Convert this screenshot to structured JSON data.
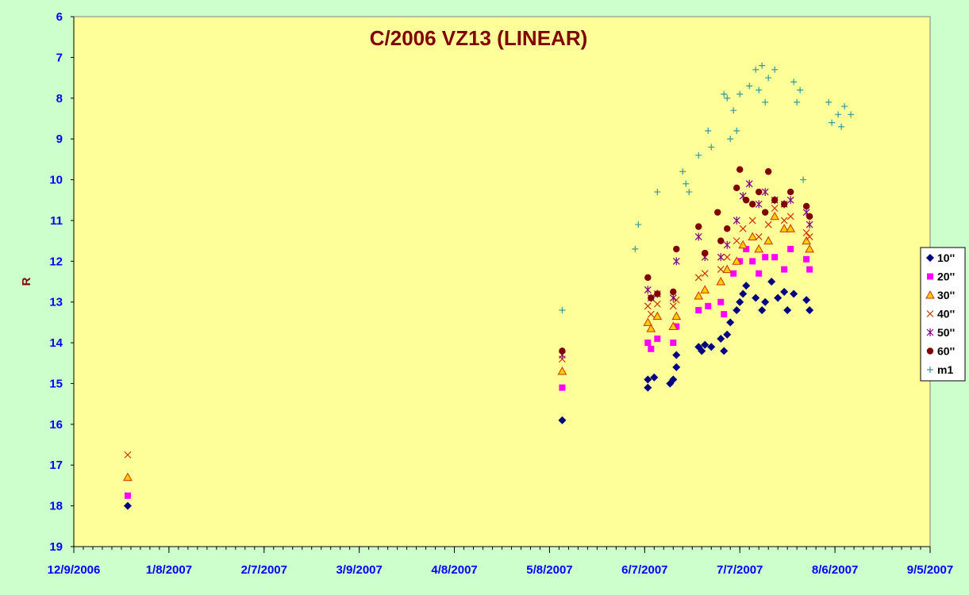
{
  "chart_data": {
    "type": "scatter",
    "title": "C/2006 VZ13 (LINEAR)",
    "ylabel": "R",
    "xlabel": "",
    "y_inverted": true,
    "ylim": [
      6,
      19
    ],
    "y_ticks": [
      6,
      7,
      8,
      9,
      10,
      11,
      12,
      13,
      14,
      15,
      16,
      17,
      18,
      19
    ],
    "xlim": [
      "2006-12-09",
      "2007-09-05"
    ],
    "x_tick_dates": [
      "2006-12-09",
      "2007-01-08",
      "2007-02-07",
      "2007-03-09",
      "2007-04-08",
      "2007-05-08",
      "2007-06-07",
      "2007-07-07",
      "2007-08-06",
      "2007-09-05"
    ],
    "x_tick_labels": [
      "12/9/2006",
      "1/8/2007",
      "2/7/2007",
      "3/9/2007",
      "4/8/2007",
      "5/8/2007",
      "6/7/2007",
      "7/7/2007",
      "8/6/2007",
      "9/5/2007"
    ],
    "grid": false,
    "legend_position": "right",
    "colors": {
      "plot_background": "#ffff99",
      "outer_background": "#ccffcc",
      "title": "#800000",
      "axis_labels": "#0000ff",
      "ylabel": "#800000"
    },
    "series": [
      {
        "name": "10''",
        "marker": "diamond",
        "color": "#000080",
        "points": [
          [
            "2006-12-26",
            18.0
          ],
          [
            "2007-05-12",
            15.9
          ],
          [
            "2007-06-08",
            15.1
          ],
          [
            "2007-06-08",
            14.9
          ],
          [
            "2007-06-10",
            14.85
          ],
          [
            "2007-06-15",
            15.0
          ],
          [
            "2007-06-16",
            14.9
          ],
          [
            "2007-06-17",
            14.6
          ],
          [
            "2007-06-17",
            14.3
          ],
          [
            "2007-06-24",
            14.1
          ],
          [
            "2007-06-25",
            14.2
          ],
          [
            "2007-06-26",
            14.05
          ],
          [
            "2007-06-28",
            14.1
          ],
          [
            "2007-07-01",
            13.9
          ],
          [
            "2007-07-02",
            14.2
          ],
          [
            "2007-07-03",
            13.8
          ],
          [
            "2007-07-04",
            13.5
          ],
          [
            "2007-07-06",
            13.2
          ],
          [
            "2007-07-07",
            13.0
          ],
          [
            "2007-07-08",
            12.8
          ],
          [
            "2007-07-09",
            12.6
          ],
          [
            "2007-07-12",
            12.9
          ],
          [
            "2007-07-14",
            13.2
          ],
          [
            "2007-07-15",
            13.0
          ],
          [
            "2007-07-17",
            12.5
          ],
          [
            "2007-07-19",
            12.9
          ],
          [
            "2007-07-21",
            12.75
          ],
          [
            "2007-07-22",
            13.2
          ],
          [
            "2007-07-24",
            12.8
          ],
          [
            "2007-07-28",
            12.95
          ],
          [
            "2007-07-29",
            13.2
          ]
        ]
      },
      {
        "name": "20''",
        "marker": "square",
        "color": "#ff00ff",
        "points": [
          [
            "2006-12-26",
            17.75
          ],
          [
            "2007-05-12",
            15.1
          ],
          [
            "2007-06-08",
            14.0
          ],
          [
            "2007-06-09",
            14.15
          ],
          [
            "2007-06-11",
            13.9
          ],
          [
            "2007-06-16",
            14.0
          ],
          [
            "2007-06-17",
            13.6
          ],
          [
            "2007-06-24",
            13.2
          ],
          [
            "2007-06-27",
            13.1
          ],
          [
            "2007-07-01",
            13.0
          ],
          [
            "2007-07-02",
            13.3
          ],
          [
            "2007-07-05",
            12.3
          ],
          [
            "2007-07-07",
            12.0
          ],
          [
            "2007-07-09",
            11.7
          ],
          [
            "2007-07-11",
            12.0
          ],
          [
            "2007-07-13",
            12.3
          ],
          [
            "2007-07-15",
            11.9
          ],
          [
            "2007-07-18",
            11.9
          ],
          [
            "2007-07-21",
            12.2
          ],
          [
            "2007-07-23",
            11.7
          ],
          [
            "2007-07-28",
            11.95
          ],
          [
            "2007-07-29",
            12.2
          ]
        ]
      },
      {
        "name": "30''",
        "marker": "triangle",
        "color": "#ffcc00",
        "stroke": "#cc3300",
        "points": [
          [
            "2006-12-26",
            17.3
          ],
          [
            "2007-05-12",
            14.7
          ],
          [
            "2007-06-08",
            13.5
          ],
          [
            "2007-06-09",
            13.65
          ],
          [
            "2007-06-11",
            13.35
          ],
          [
            "2007-06-16",
            13.6
          ],
          [
            "2007-06-17",
            13.35
          ],
          [
            "2007-06-24",
            12.85
          ],
          [
            "2007-06-26",
            12.7
          ],
          [
            "2007-07-01",
            12.5
          ],
          [
            "2007-07-03",
            12.2
          ],
          [
            "2007-07-06",
            12.0
          ],
          [
            "2007-07-08",
            11.6
          ],
          [
            "2007-07-11",
            11.4
          ],
          [
            "2007-07-13",
            11.7
          ],
          [
            "2007-07-16",
            11.5
          ],
          [
            "2007-07-18",
            10.9
          ],
          [
            "2007-07-21",
            11.2
          ],
          [
            "2007-07-23",
            11.2
          ],
          [
            "2007-07-28",
            11.5
          ],
          [
            "2007-07-29",
            11.7
          ]
        ]
      },
      {
        "name": "40''",
        "marker": "x",
        "color": "#cc3300",
        "points": [
          [
            "2006-12-26",
            16.75
          ],
          [
            "2007-05-12",
            14.4
          ],
          [
            "2007-06-08",
            13.1
          ],
          [
            "2007-06-09",
            13.3
          ],
          [
            "2007-06-11",
            13.05
          ],
          [
            "2007-06-16",
            13.1
          ],
          [
            "2007-06-17",
            12.95
          ],
          [
            "2007-06-24",
            12.4
          ],
          [
            "2007-06-26",
            12.3
          ],
          [
            "2007-07-01",
            12.2
          ],
          [
            "2007-07-03",
            11.9
          ],
          [
            "2007-07-06",
            11.5
          ],
          [
            "2007-07-08",
            11.2
          ],
          [
            "2007-07-11",
            11.0
          ],
          [
            "2007-07-13",
            11.4
          ],
          [
            "2007-07-16",
            11.1
          ],
          [
            "2007-07-18",
            10.7
          ],
          [
            "2007-07-21",
            11.0
          ],
          [
            "2007-07-23",
            10.9
          ],
          [
            "2007-07-28",
            11.3
          ],
          [
            "2007-07-29",
            11.4
          ]
        ]
      },
      {
        "name": "50''",
        "marker": "star",
        "color": "#800080",
        "points": [
          [
            "2007-05-12",
            14.3
          ],
          [
            "2007-06-08",
            12.7
          ],
          [
            "2007-06-09",
            12.9
          ],
          [
            "2007-06-11",
            12.8
          ],
          [
            "2007-06-16",
            12.9
          ],
          [
            "2007-06-17",
            12.0
          ],
          [
            "2007-06-24",
            11.4
          ],
          [
            "2007-06-26",
            11.9
          ],
          [
            "2007-07-01",
            11.9
          ],
          [
            "2007-07-03",
            11.6
          ],
          [
            "2007-07-06",
            11.0
          ],
          [
            "2007-07-08",
            10.4
          ],
          [
            "2007-07-10",
            10.1
          ],
          [
            "2007-07-13",
            10.6
          ],
          [
            "2007-07-15",
            10.3
          ],
          [
            "2007-07-18",
            10.5
          ],
          [
            "2007-07-21",
            10.6
          ],
          [
            "2007-07-23",
            10.5
          ],
          [
            "2007-07-28",
            10.8
          ],
          [
            "2007-07-29",
            11.1
          ]
        ]
      },
      {
        "name": "60''",
        "marker": "circle",
        "color": "#800000",
        "points": [
          [
            "2007-05-12",
            14.2
          ],
          [
            "2007-06-08",
            12.4
          ],
          [
            "2007-06-09",
            12.9
          ],
          [
            "2007-06-11",
            12.8
          ],
          [
            "2007-06-16",
            12.75
          ],
          [
            "2007-06-17",
            11.7
          ],
          [
            "2007-06-24",
            11.15
          ],
          [
            "2007-06-26",
            11.8
          ],
          [
            "2007-06-30",
            10.8
          ],
          [
            "2007-07-01",
            11.5
          ],
          [
            "2007-07-03",
            11.2
          ],
          [
            "2007-07-06",
            10.2
          ],
          [
            "2007-07-07",
            9.75
          ],
          [
            "2007-07-09",
            10.5
          ],
          [
            "2007-07-11",
            10.6
          ],
          [
            "2007-07-13",
            10.3
          ],
          [
            "2007-07-15",
            10.8
          ],
          [
            "2007-07-16",
            9.8
          ],
          [
            "2007-07-18",
            10.5
          ],
          [
            "2007-07-21",
            10.6
          ],
          [
            "2007-07-23",
            10.3
          ],
          [
            "2007-07-28",
            10.65
          ],
          [
            "2007-07-29",
            10.9
          ]
        ]
      },
      {
        "name": "m1",
        "marker": "plus",
        "color": "#339999",
        "points": [
          [
            "2007-05-12",
            13.2
          ],
          [
            "2007-06-04",
            11.7
          ],
          [
            "2007-06-05",
            11.1
          ],
          [
            "2007-06-11",
            10.3
          ],
          [
            "2007-06-19",
            9.8
          ],
          [
            "2007-06-20",
            10.1
          ],
          [
            "2007-06-21",
            10.3
          ],
          [
            "2007-06-24",
            9.4
          ],
          [
            "2007-06-27",
            8.8
          ],
          [
            "2007-06-28",
            9.2
          ],
          [
            "2007-07-02",
            7.9
          ],
          [
            "2007-07-03",
            8.0
          ],
          [
            "2007-07-04",
            9.0
          ],
          [
            "2007-07-05",
            8.3
          ],
          [
            "2007-07-06",
            8.8
          ],
          [
            "2007-07-07",
            7.9
          ],
          [
            "2007-07-10",
            7.7
          ],
          [
            "2007-07-12",
            7.3
          ],
          [
            "2007-07-13",
            7.8
          ],
          [
            "2007-07-14",
            7.2
          ],
          [
            "2007-07-15",
            8.1
          ],
          [
            "2007-07-16",
            7.5
          ],
          [
            "2007-07-18",
            7.3
          ],
          [
            "2007-07-24",
            7.6
          ],
          [
            "2007-07-25",
            8.1
          ],
          [
            "2007-07-26",
            7.8
          ],
          [
            "2007-07-27",
            10.0
          ],
          [
            "2007-08-04",
            8.1
          ],
          [
            "2007-08-05",
            8.6
          ],
          [
            "2007-08-07",
            8.4
          ],
          [
            "2007-08-08",
            8.7
          ],
          [
            "2007-08-09",
            8.2
          ],
          [
            "2007-08-11",
            8.4
          ]
        ]
      }
    ]
  }
}
